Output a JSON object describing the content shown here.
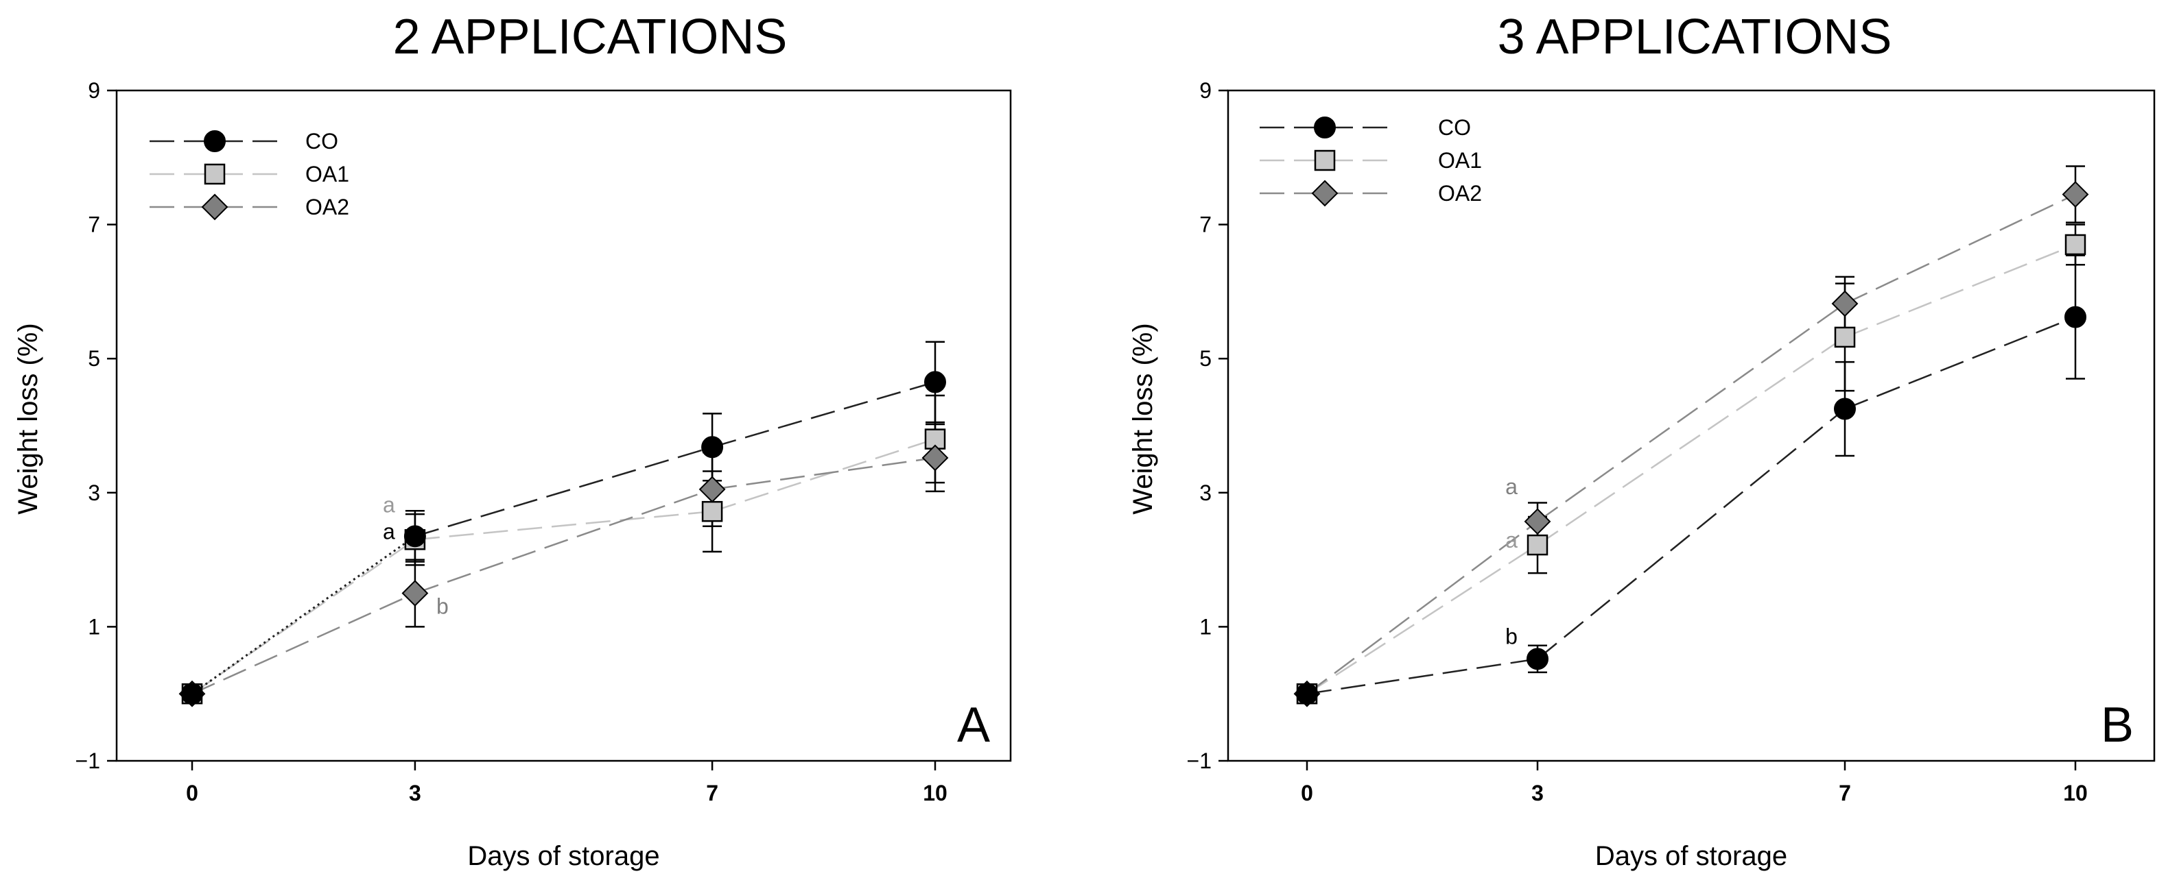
{
  "chart_data": [
    {
      "type": "line",
      "title": "2 APPLICATIONS",
      "panel_label": "A",
      "xlabel": "Days of storage",
      "ylabel": "Weight loss (%)",
      "x": [
        0,
        3,
        7,
        10
      ],
      "x_ticks": [
        "0",
        "3",
        "7",
        "10"
      ],
      "ylim": [
        -1,
        9
      ],
      "y_ticks": [
        "−1",
        "1",
        "3",
        "5",
        "7",
        "9"
      ],
      "legend_position": "top-left",
      "series": [
        {
          "name": "CO",
          "marker": "circle",
          "line_color": "#222222",
          "marker_fill": "#000000",
          "values": [
            0,
            2.35,
            3.68,
            4.65
          ],
          "errors": [
            0,
            0.38,
            0.5,
            0.6
          ],
          "labels": [
            null,
            "a",
            null,
            null
          ],
          "label_color": "#000000",
          "label_side": [
            "",
            "left",
            "",
            ""
          ]
        },
        {
          "name": "OA1",
          "marker": "square",
          "line_color": "#c4c4c4",
          "marker_fill": "#c8c8c8",
          "values": [
            0,
            2.3,
            2.72,
            3.8
          ],
          "errors": [
            0,
            0.38,
            0.6,
            0.65
          ],
          "labels": [
            null,
            "a",
            null,
            null
          ],
          "label_color": "#999999",
          "label_side": [
            "",
            "left-high",
            "",
            ""
          ]
        },
        {
          "name": "OA2",
          "marker": "diamond",
          "line_color": "#8a8a8a",
          "marker_fill": "#7f7f7f",
          "values": [
            0,
            1.5,
            3.05,
            3.52
          ],
          "errors": [
            0,
            0.5,
            0.55,
            0.5
          ],
          "labels": [
            null,
            "b",
            null,
            null
          ],
          "label_color": "#808080",
          "label_side": [
            "",
            "right",
            "",
            ""
          ]
        }
      ]
    },
    {
      "type": "line",
      "title": "3 APPLICATIONS",
      "panel_label": "B",
      "xlabel": "Days of storage",
      "ylabel": "Weight loss (%)",
      "x": [
        0,
        3,
        7,
        10
      ],
      "x_ticks": [
        "0",
        "3",
        "7",
        "10"
      ],
      "ylim": [
        -1,
        9
      ],
      "y_ticks": [
        "−1",
        "1",
        "3",
        "5",
        "7",
        "9"
      ],
      "legend_position": "top-left",
      "series": [
        {
          "name": "CO",
          "marker": "circle",
          "line_color": "#222222",
          "marker_fill": "#000000",
          "values": [
            0,
            0.52,
            4.25,
            5.62
          ],
          "errors": [
            0,
            0.2,
            0.7,
            0.92
          ],
          "labels": [
            null,
            "b",
            null,
            null
          ],
          "label_color": "#000000",
          "label_side": [
            "",
            "left",
            "",
            ""
          ]
        },
        {
          "name": "OA1",
          "marker": "square",
          "line_color": "#c4c4c4",
          "marker_fill": "#c8c8c8",
          "values": [
            0,
            2.22,
            5.32,
            6.7
          ],
          "errors": [
            0,
            0.42,
            0.8,
            0.3
          ],
          "labels": [
            null,
            "a",
            null,
            null
          ],
          "label_color": "#999999",
          "label_side": [
            "",
            "left",
            "",
            ""
          ]
        },
        {
          "name": "OA2",
          "marker": "diamond",
          "line_color": "#8a8a8a",
          "marker_fill": "#7f7f7f",
          "values": [
            0,
            2.57,
            5.82,
            7.45
          ],
          "errors": [
            0,
            0.28,
            0.4,
            0.42
          ],
          "labels": [
            null,
            "a",
            null,
            null
          ],
          "label_color": "#808080",
          "label_side": [
            "",
            "left-high",
            "",
            ""
          ]
        }
      ]
    }
  ]
}
